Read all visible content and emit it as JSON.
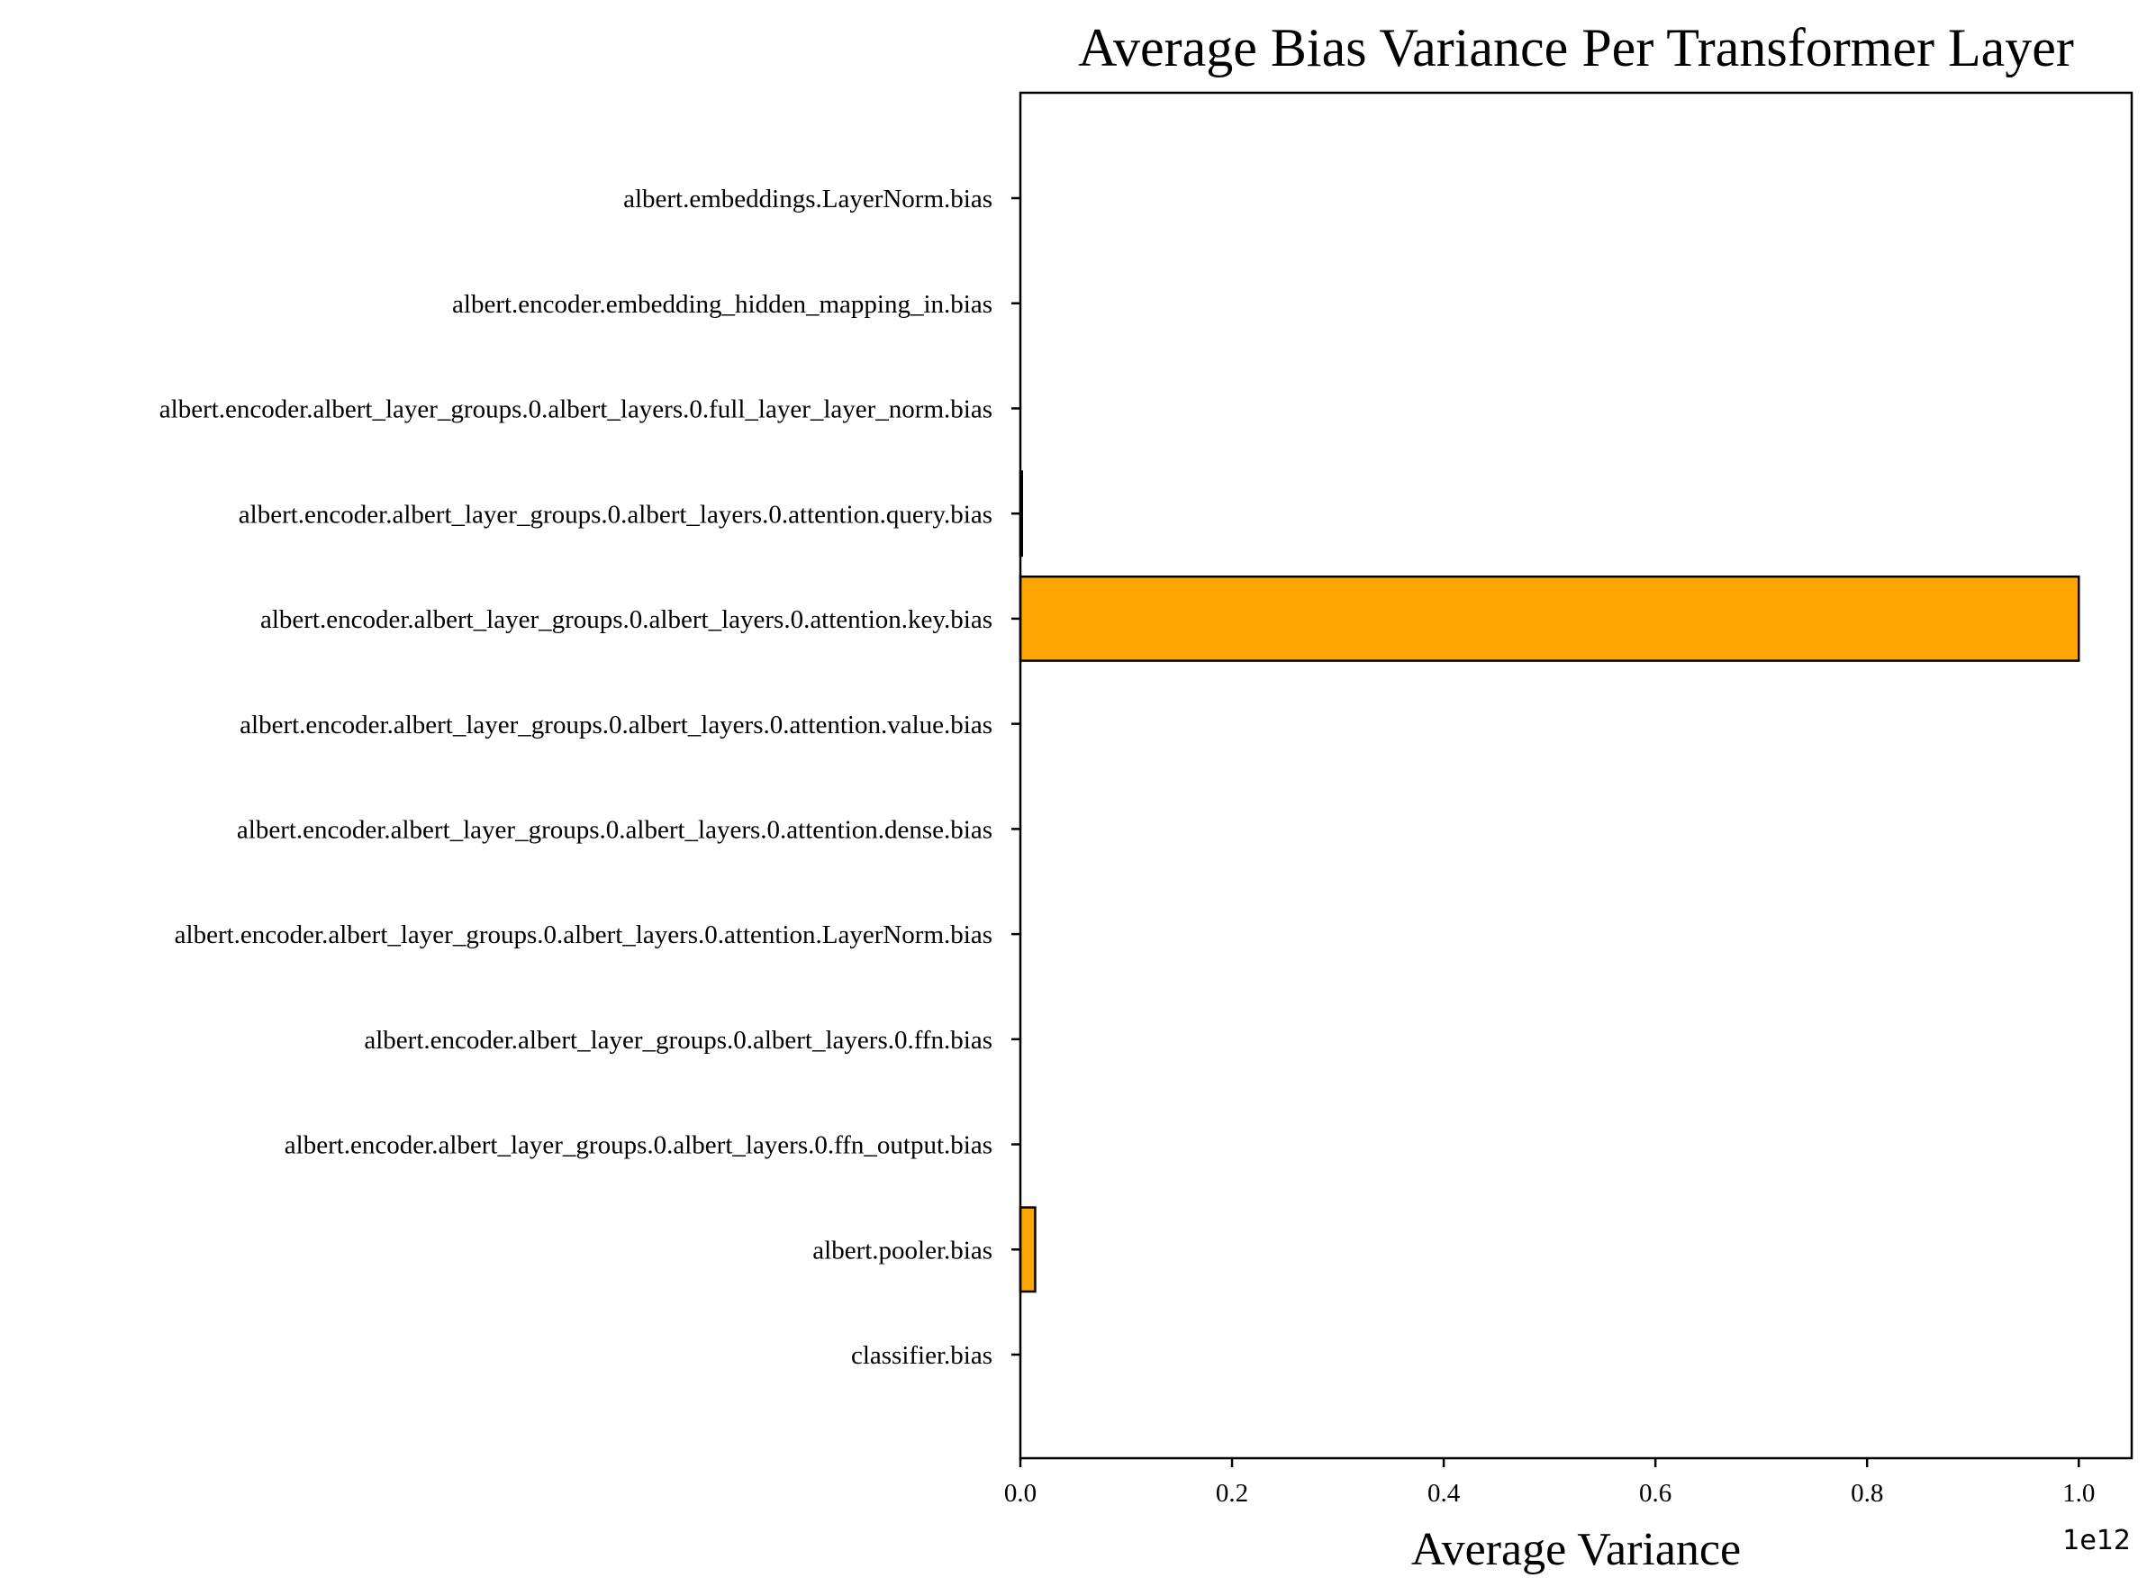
{
  "chart_data": {
    "type": "bar",
    "orientation": "horizontal",
    "title": "Average Bias Variance Per Transformer Layer",
    "xlabel": "Average Variance",
    "ylabel": "",
    "x_offset_label": "1e12",
    "x_scale_factor": 1000000000000.0,
    "xlim": [
      0,
      1.05
    ],
    "xticks": [
      "0.0",
      "0.2",
      "0.4",
      "0.6",
      "0.8",
      "1.0"
    ],
    "categories": [
      "albert.embeddings.LayerNorm.bias",
      "albert.encoder.embedding_hidden_mapping_in.bias",
      "albert.encoder.albert_layer_groups.0.albert_layers.0.full_layer_layer_norm.bias",
      "albert.encoder.albert_layer_groups.0.albert_layers.0.attention.query.bias",
      "albert.encoder.albert_layer_groups.0.albert_layers.0.attention.key.bias",
      "albert.encoder.albert_layer_groups.0.albert_layers.0.attention.value.bias",
      "albert.encoder.albert_layer_groups.0.albert_layers.0.attention.dense.bias",
      "albert.encoder.albert_layer_groups.0.albert_layers.0.attention.LayerNorm.bias",
      "albert.encoder.albert_layer_groups.0.albert_layers.0.ffn.bias",
      "albert.encoder.albert_layer_groups.0.albert_layers.0.ffn_output.bias",
      "albert.pooler.bias",
      "classifier.bias"
    ],
    "values": [
      0,
      0,
      0,
      0.0015,
      1.0,
      0,
      0,
      0,
      0,
      0,
      0.014,
      0
    ],
    "bar_color": "#ffa500",
    "edge_color": "#000000",
    "grid": false,
    "legend": "none"
  }
}
